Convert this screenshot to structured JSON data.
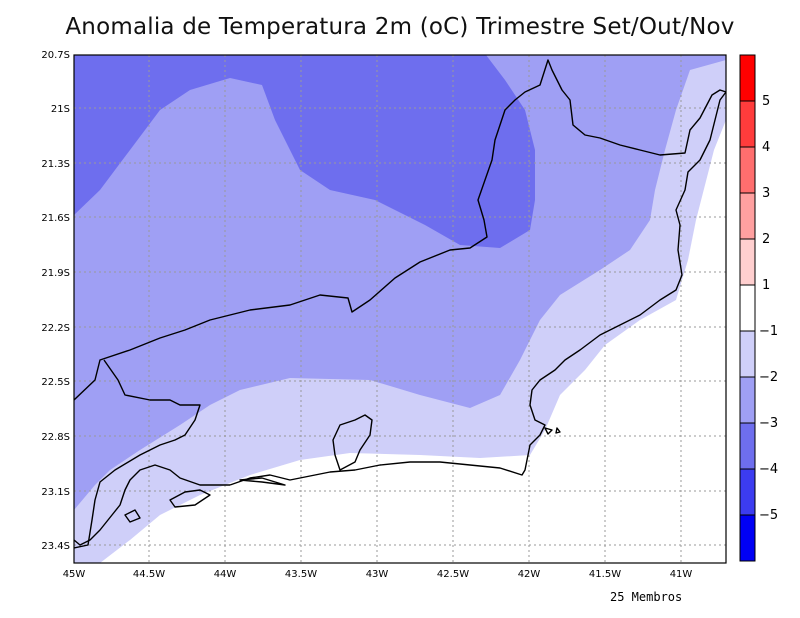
{
  "title": "Anomalia de Temperatura 2m (oC) Trimestre Set/Out/Nov",
  "footer": "25 Membros",
  "map": {
    "lon_ticks": [
      "45W",
      "44.5W",
      "44W",
      "43.5W",
      "43W",
      "42.5W",
      "42W",
      "41.5W",
      "41W"
    ],
    "lat_ticks": [
      "20.7S",
      "21S",
      "21.3S",
      "21.6S",
      "21.9S",
      "22.2S",
      "22.5S",
      "22.8S",
      "23.1S",
      "23.4S"
    ],
    "grid": true
  },
  "colorbar": {
    "labels": [
      "5",
      "4",
      "3",
      "2",
      "1",
      "−1",
      "−2",
      "−3",
      "−4",
      "−5"
    ],
    "colors": [
      "#ff0000",
      "#ff3c3c",
      "#ff6e6e",
      "#ffa0a0",
      "#ffcfcf",
      "#ffffff",
      "#cfcff9",
      "#9f9ff4",
      "#6e6eee",
      "#3c3cf0",
      "#0000f5"
    ]
  },
  "colors": {
    "anomaly_-1_to_0": "#ffffff",
    "anomaly_-2_to_-1": "#cfcff9",
    "anomaly_-3_to_-2": "#9f9ff4",
    "anomaly_-4_to_-3": "#6e6eee"
  }
}
